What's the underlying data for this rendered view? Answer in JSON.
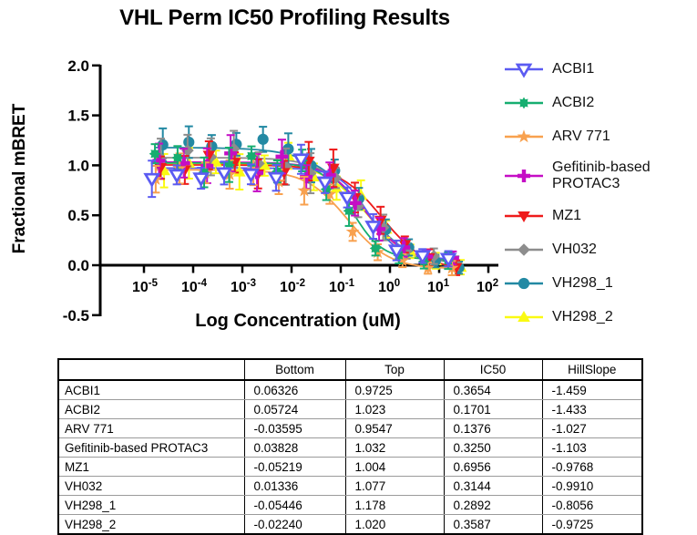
{
  "chart_data": {
    "type": "scatter",
    "subtype": "dose-response curves with error bars and sigmoidal fits",
    "title": "VHL Perm IC50 Profiling Results",
    "xlabel": "Log Concentration (uM)",
    "ylabel": "Fractional mBRET",
    "x_scale": "log10",
    "x_tick_exponents": [
      -5,
      -4,
      -3,
      -2,
      -1,
      0,
      1,
      2
    ],
    "y_ticks": [
      "2.0",
      "1.5",
      "1.0",
      "0.5",
      "0.0",
      "-0.5"
    ],
    "y_tick_values": [
      2.0,
      1.5,
      1.0,
      0.5,
      0.0,
      -0.5
    ],
    "ylim": [
      -0.5,
      2.0
    ],
    "grid": false,
    "legend_position": "right",
    "error_bars": "vertical SD bars with caps on every point, colored per series",
    "concentrations_uM": [
      2e-05,
      6.32e-05,
      0.0002,
      0.000632,
      0.002,
      0.00632,
      0.02,
      0.0632,
      0.2,
      0.632,
      2,
      6.32,
      20
    ],
    "model": "Y = Bottom + (Top - Bottom) / (1 + 10^((log10(IC50) - log10(X)) * HillSlope))",
    "series": [
      {
        "name": "ACBI1",
        "color": "#5B5BF2",
        "marker": "triangle-down-open",
        "fit": {
          "Bottom": 0.06326,
          "Top": 0.9725,
          "IC50": 0.3654,
          "HillSlope": -1.459
        }
      },
      {
        "name": "ACBI2",
        "color": "#16AE70",
        "marker": "spiky-circle",
        "fit": {
          "Bottom": 0.05724,
          "Top": 1.023,
          "IC50": 0.1701,
          "HillSlope": -1.433
        }
      },
      {
        "name": "ARV 771",
        "color": "#F8A14F",
        "marker": "star",
        "fit": {
          "Bottom": -0.03595,
          "Top": 0.9547,
          "IC50": 0.1376,
          "HillSlope": -1.027
        }
      },
      {
        "name": "Gefitinib-based PROTAC3",
        "color": "#C50DC5",
        "marker": "plus",
        "fit": {
          "Bottom": 0.03828,
          "Top": 1.032,
          "IC50": 0.325,
          "HillSlope": -1.103
        }
      },
      {
        "name": "MZ1",
        "color": "#EE1B1B",
        "marker": "triangle-down",
        "fit": {
          "Bottom": -0.05219,
          "Top": 1.004,
          "IC50": 0.6956,
          "HillSlope": -0.9768
        }
      },
      {
        "name": "VH032",
        "color": "#8D8D8D",
        "marker": "diamond",
        "fit": {
          "Bottom": 0.01336,
          "Top": 1.077,
          "IC50": 0.3144,
          "HillSlope": -0.991
        }
      },
      {
        "name": "VH298_1",
        "color": "#2389A3",
        "marker": "circle",
        "fit": {
          "Bottom": -0.05446,
          "Top": 1.178,
          "IC50": 0.2892,
          "HillSlope": -0.8056
        }
      },
      {
        "name": "VH298_2",
        "color": "#FAFA12",
        "marker": "triangle-up",
        "fit": {
          "Bottom": -0.0224,
          "Top": 1.02,
          "IC50": 0.3587,
          "HillSlope": -0.9725
        }
      }
    ]
  },
  "table": {
    "columns": [
      "",
      "Bottom",
      "Top",
      "IC50",
      "HillSlope"
    ],
    "rows": [
      [
        "ACBI1",
        "0.06326",
        "0.9725",
        "0.3654",
        "-1.459"
      ],
      [
        "ACBI2",
        "0.05724",
        "1.023",
        "0.1701",
        "-1.433"
      ],
      [
        "ARV 771",
        "-0.03595",
        "0.9547",
        "0.1376",
        "-1.027"
      ],
      [
        "Gefitinib-based PROTAC3",
        "0.03828",
        "1.032",
        "0.3250",
        "-1.103"
      ],
      [
        "MZ1",
        "-0.05219",
        "1.004",
        "0.6956",
        "-0.9768"
      ],
      [
        "VH032",
        "0.01336",
        "1.077",
        "0.3144",
        "-0.9910"
      ],
      [
        "VH298_1",
        "-0.05446",
        "1.178",
        "0.2892",
        "-0.8056"
      ],
      [
        "VH298_2",
        "-0.02240",
        "1.020",
        "0.3587",
        "-0.9725"
      ]
    ]
  }
}
